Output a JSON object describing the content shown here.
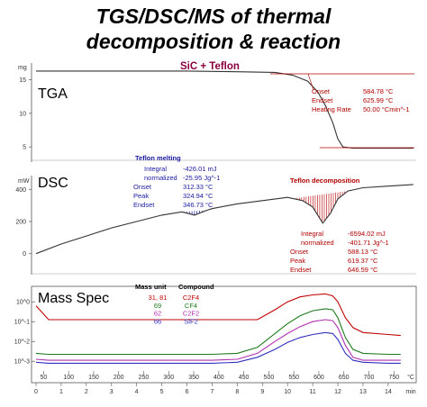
{
  "title": {
    "line1": "TGS/DSC/MS of thermal",
    "line2": "decomposition & reaction"
  },
  "colors": {
    "tga": "#333333",
    "dsc": "#333333",
    "ms_c2f4": "#c00000",
    "ms_cf4": "#1e7a1e",
    "ms_c2f2": "#b030b0",
    "ms_sif2": "#3030c0",
    "annotation_red": "#b00000",
    "annotation_blue": "#1a1aa0",
    "teflon_label": "#8b0040"
  },
  "chart_data": [
    {
      "type": "line",
      "panel": "TGA",
      "panel_label": "TGA",
      "unit_label": "mg",
      "legend_title": "SiC + Teflon",
      "yticks": [
        5,
        10,
        15
      ],
      "ylim": [
        3,
        17.5
      ],
      "x_unit": "min",
      "series": [
        {
          "x": [
            0,
            2,
            4,
            6,
            8,
            9.5,
            10.2,
            10.8,
            11.2,
            11.5,
            11.8,
            12.0,
            12.2,
            12.6,
            13,
            14,
            15
          ],
          "values": [
            16.3,
            16.3,
            16.3,
            16.3,
            16.2,
            16.1,
            15.7,
            14.8,
            13.2,
            11.2,
            8.6,
            6.2,
            5.0,
            4.8,
            4.8,
            4.8,
            4.8
          ]
        }
      ],
      "annotations": [
        {
          "label": "Onset",
          "value": "584.78 °C"
        },
        {
          "label": "Endset",
          "value": "625.99 °C"
        },
        {
          "label": "Heating Rate",
          "value": "50.00 °Cmin^-1"
        }
      ]
    },
    {
      "type": "line",
      "panel": "DSC",
      "panel_label": "DSC",
      "unit_label": "mW",
      "yticks": [
        0,
        200,
        400
      ],
      "ylim": [
        -80,
        480
      ],
      "x_unit": "min",
      "series": [
        {
          "x": [
            0,
            1,
            2,
            3,
            4,
            5,
            5.8,
            6.3,
            6.8,
            7,
            8,
            9,
            10,
            10.6,
            11.0,
            11.4,
            11.7,
            12.0,
            12.4,
            13,
            14,
            15
          ],
          "values": [
            0,
            60,
            110,
            160,
            200,
            240,
            260,
            240,
            270,
            280,
            310,
            330,
            350,
            330,
            290,
            190,
            250,
            340,
            390,
            410,
            420,
            430
          ]
        }
      ],
      "teflon_melting": {
        "title": "Teflon melting",
        "rows": [
          {
            "label": "Integral",
            "value": "-426.01 mJ"
          },
          {
            "label": "normalized",
            "value": "-25.95 Jg^-1"
          },
          {
            "label": "Onset",
            "value": "312.33 °C"
          },
          {
            "label": "Peak",
            "value": "324.94 °C"
          },
          {
            "label": "Endset",
            "value": "346.73 °C"
          }
        ]
      },
      "teflon_decomposition": {
        "title": "Teflon decomposition",
        "rows": [
          {
            "label": "Integral",
            "value": "-6594.02 mJ"
          },
          {
            "label": "normalized",
            "value": "-401.71 Jg^-1"
          },
          {
            "label": "Onset",
            "value": "588.13 °C"
          },
          {
            "label": "Peak",
            "value": "619.37 °C"
          },
          {
            "label": "Endset",
            "value": "646.59 °C"
          }
        ]
      }
    },
    {
      "type": "line",
      "panel": "Mass Spec",
      "panel_label": "Mass Spec",
      "yscale": "log",
      "ytick_labels": [
        "10^0",
        "10^-1",
        "10^-2",
        "10^-3"
      ],
      "ylim_exponent": [
        -3.4,
        0.6
      ],
      "x_unit": "min",
      "x_ticks_min": [
        0,
        1,
        2,
        3,
        4,
        5,
        6,
        7,
        8,
        9,
        10,
        11,
        12,
        13,
        14
      ],
      "temp_ticks": [
        "50",
        "100",
        "150",
        "200",
        "250",
        "300",
        "350",
        "400",
        "450",
        "500",
        "550",
        "600",
        "650",
        "700",
        "750"
      ],
      "temp_unit": "°C",
      "legend_headers": {
        "mass": "Mass unit",
        "compound": "Compound"
      },
      "legend": [
        {
          "mass": "31, 81",
          "compound": "C2F4"
        },
        {
          "mass": "69",
          "compound": "CF4"
        },
        {
          "mass": "62",
          "compound": "C2F2"
        },
        {
          "mass": "66",
          "compound": "SiF2"
        }
      ],
      "x": [
        0,
        0.5,
        1,
        2,
        3,
        4,
        5,
        6,
        7,
        8,
        8.8,
        9.5,
        10,
        10.5,
        11,
        11.5,
        11.8,
        12.0,
        12.3,
        12.6,
        13,
        14,
        14.5
      ],
      "series": [
        {
          "name": "C2F4",
          "values": [
            -0.2,
            -0.9,
            -0.9,
            -0.9,
            -0.9,
            -0.9,
            -0.9,
            -0.9,
            -0.9,
            -0.9,
            -0.9,
            -0.4,
            0.0,
            0.25,
            0.35,
            0.4,
            0.3,
            0.0,
            -0.8,
            -1.3,
            -1.55,
            -1.65,
            -1.7
          ]
        },
        {
          "name": "CF4",
          "values": [
            -2.6,
            -2.65,
            -2.65,
            -2.65,
            -2.65,
            -2.65,
            -2.65,
            -2.65,
            -2.65,
            -2.6,
            -2.3,
            -1.6,
            -1.1,
            -0.7,
            -0.45,
            -0.35,
            -0.4,
            -0.8,
            -1.8,
            -2.4,
            -2.6,
            -2.65,
            -2.65
          ]
        },
        {
          "name": "C2F2",
          "values": [
            -2.9,
            -2.95,
            -2.95,
            -2.95,
            -2.95,
            -2.95,
            -2.95,
            -2.95,
            -2.95,
            -2.9,
            -2.6,
            -2.0,
            -1.6,
            -1.25,
            -1.0,
            -0.9,
            -0.95,
            -1.3,
            -2.2,
            -2.8,
            -2.95,
            -2.95,
            -2.95
          ]
        },
        {
          "name": "SiF2",
          "values": [
            -3.05,
            -3.1,
            -3.1,
            -3.1,
            -3.1,
            -3.1,
            -3.1,
            -3.1,
            -3.1,
            -3.05,
            -2.8,
            -2.4,
            -2.05,
            -1.8,
            -1.65,
            -1.55,
            -1.6,
            -1.9,
            -2.6,
            -2.95,
            -3.05,
            -3.1,
            -3.1
          ]
        }
      ]
    }
  ]
}
